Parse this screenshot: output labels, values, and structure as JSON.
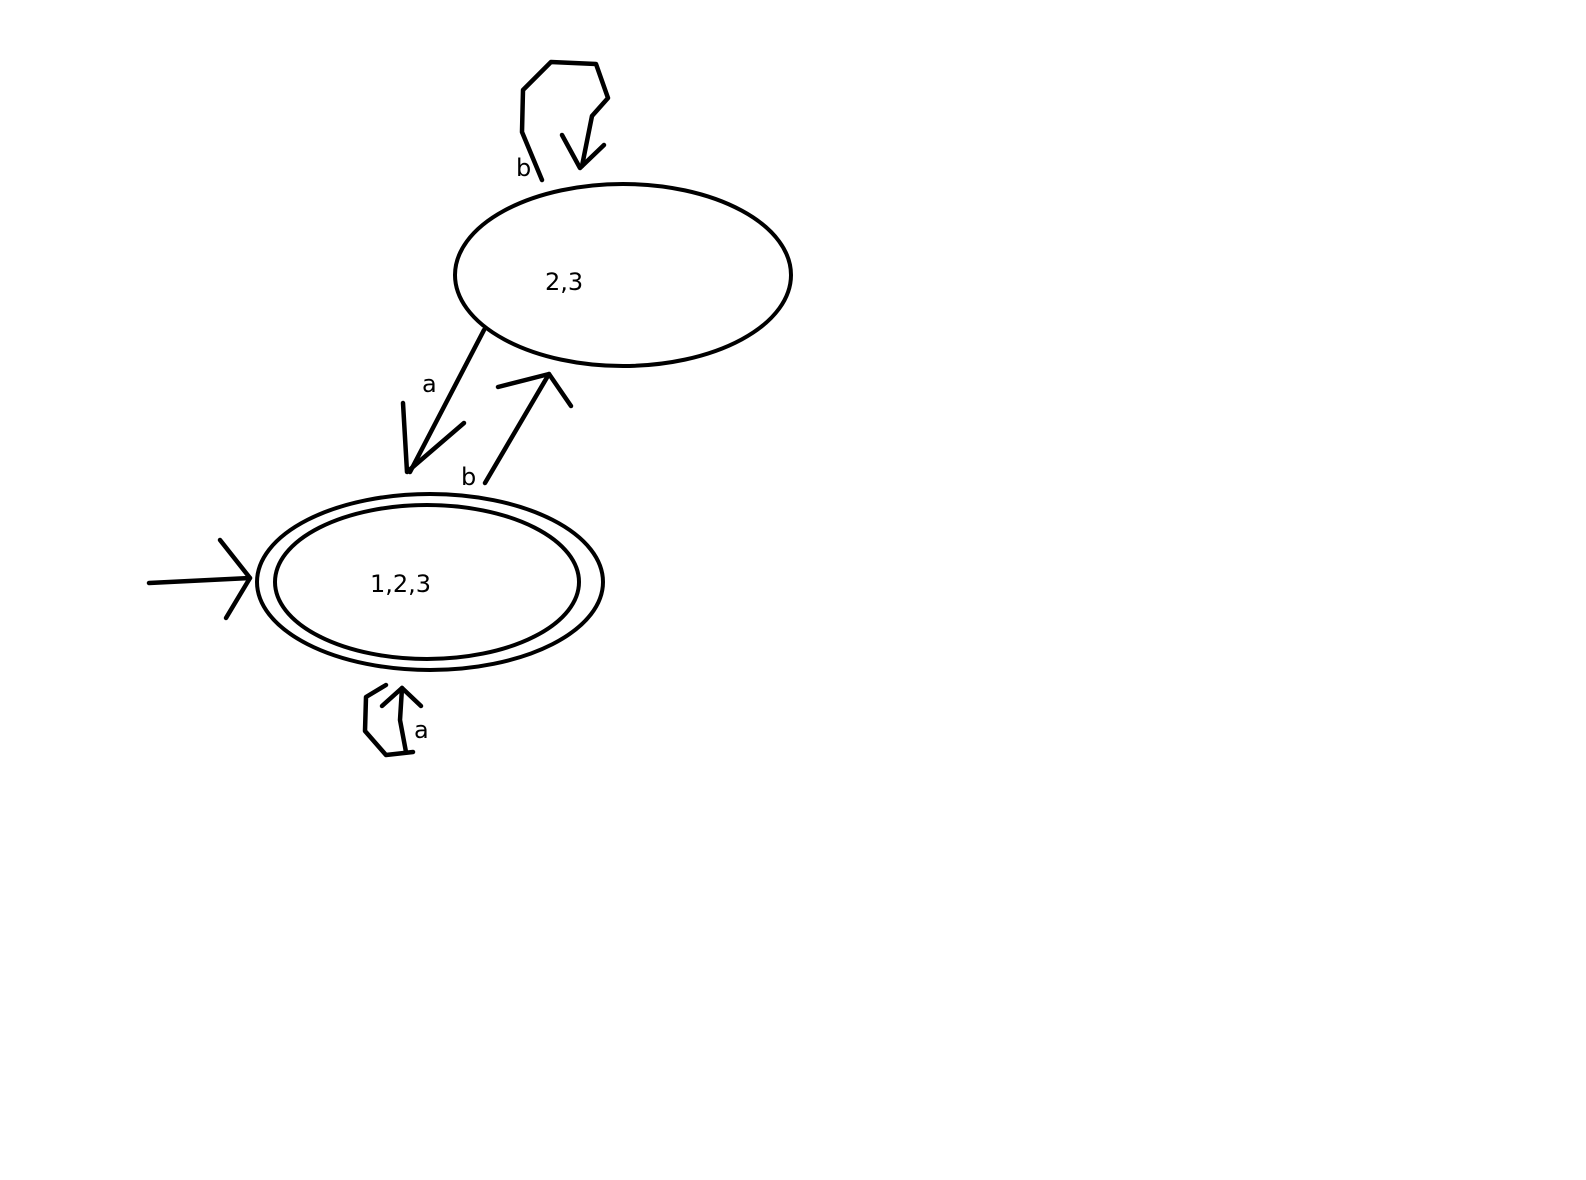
{
  "diagram": {
    "type": "state-transition-diagram",
    "states": [
      {
        "id": "s123",
        "label": "1,2,3",
        "start": true,
        "accepting": true
      },
      {
        "id": "s23",
        "label": "2,3",
        "start": false,
        "accepting": false
      }
    ],
    "transitions": [
      {
        "from": "s23",
        "to": "s23",
        "symbol": "b"
      },
      {
        "from": "s23",
        "to": "s123",
        "symbol": "a"
      },
      {
        "from": "s123",
        "to": "s23",
        "symbol": "b"
      },
      {
        "from": "s123",
        "to": "s123",
        "symbol": "a"
      }
    ],
    "stroke_color": "#000000",
    "background_color": "#ffffff"
  }
}
